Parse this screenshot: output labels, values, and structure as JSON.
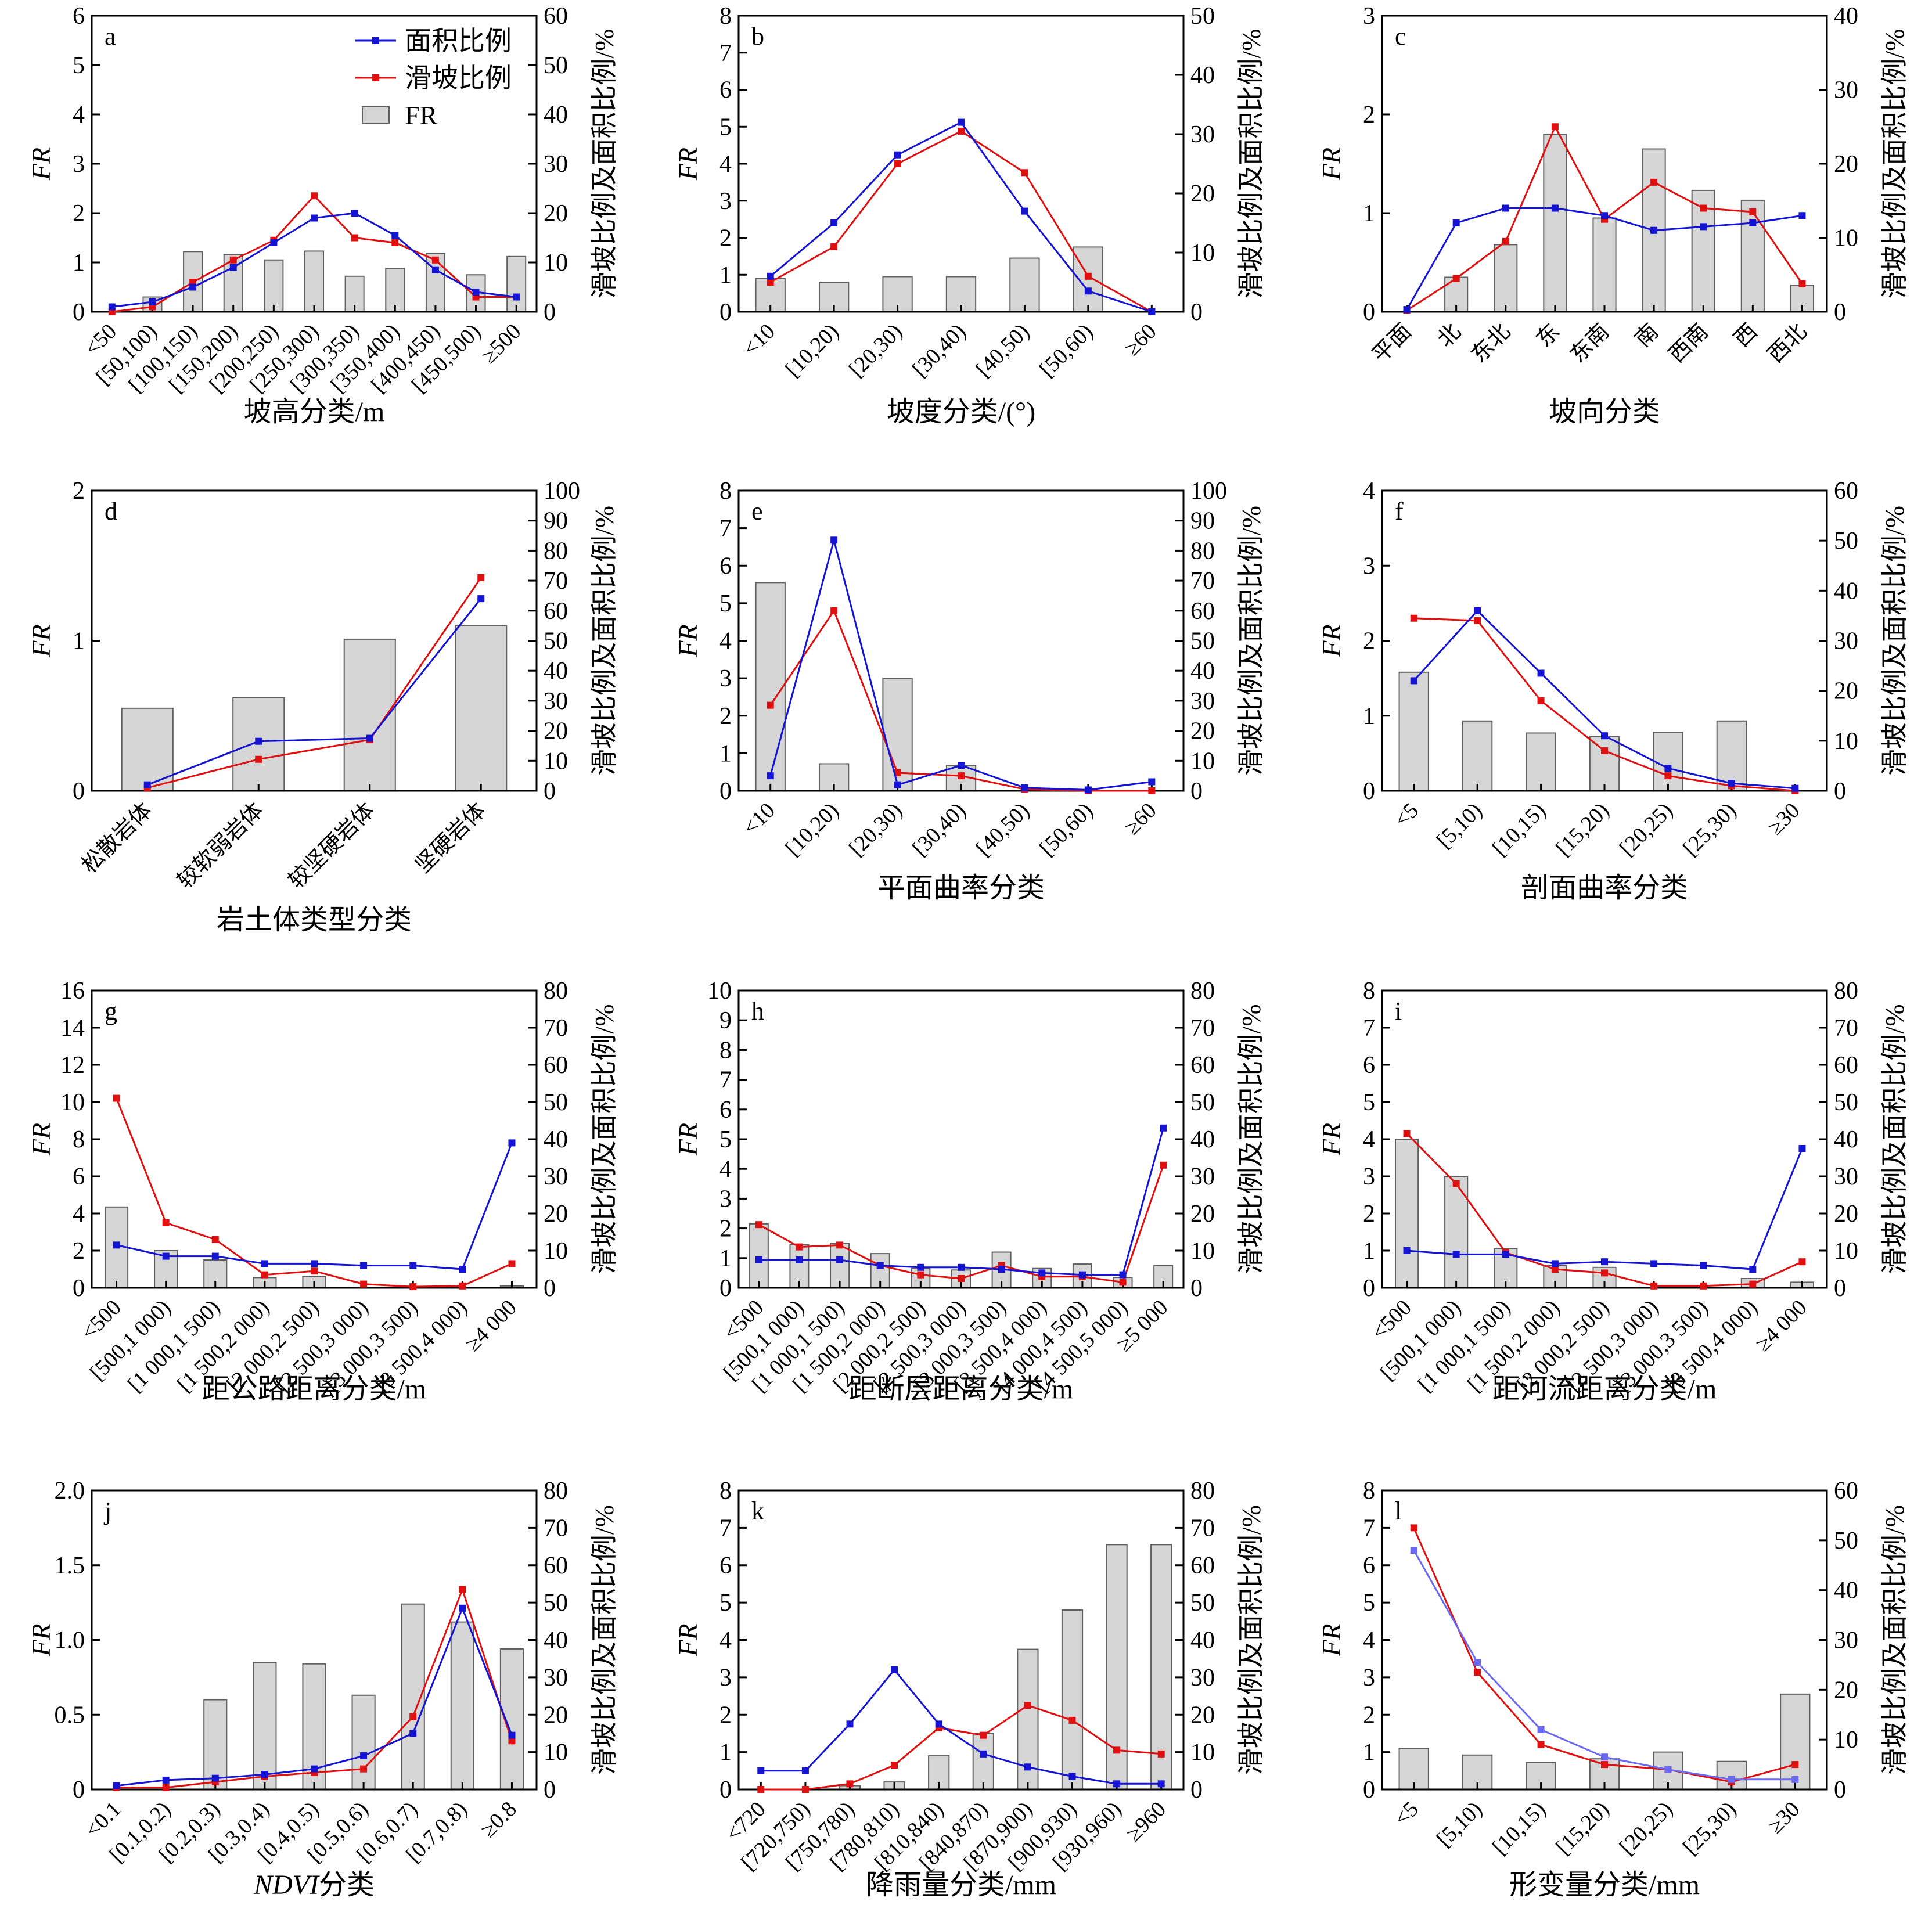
{
  "figure": {
    "colors": {
      "area": "#1414d2",
      "landslide": "#e01010",
      "bar_fill": "#d6d6d6",
      "bar_stroke": "#606060",
      "faint_area": "#6a6af0"
    },
    "legend": {
      "area": "面积比例",
      "landslide": "滑坡比例",
      "fr": "FR"
    }
  },
  "chart_data": [
    {
      "id": "a",
      "letter": "a",
      "type": "bar+line",
      "title": "",
      "xlabel": "坡高分类/m",
      "ylabel_left": "FR",
      "ylabel_right": "滑坡比例及面积比例/%",
      "left_ylim": [
        0,
        6
      ],
      "left_ticks": [
        "0",
        "1",
        "2",
        "3",
        "4",
        "5",
        "6"
      ],
      "right_ylim": [
        0,
        60
      ],
      "right_ticks": [
        "0",
        "10",
        "20",
        "30",
        "40",
        "50",
        "60"
      ],
      "categories": [
        "<50",
        "[50,100)",
        "[100,150)",
        "[150,200)",
        "[200,250)",
        "[250,300)",
        "[300,350)",
        "[350,400)",
        "[400,450)",
        "[450,500)",
        "≥500"
      ],
      "fr": [
        0,
        0.3,
        1.22,
        1.16,
        1.05,
        1.23,
        0.72,
        0.88,
        1.18,
        0.75,
        1.12
      ],
      "series": [
        {
          "name": "面积比例",
          "values": [
            1,
            2,
            5,
            9,
            14,
            19,
            20,
            15.5,
            8.5,
            4,
            3
          ]
        },
        {
          "name": "滑坡比例",
          "values": [
            0,
            1,
            6,
            10.5,
            14.5,
            23.5,
            15,
            14,
            10.5,
            3,
            3
          ]
        }
      ],
      "has_legend": true
    },
    {
      "id": "b",
      "letter": "b",
      "type": "bar+line",
      "title": "",
      "xlabel": "坡度分类/(°)",
      "ylabel_left": "FR",
      "ylabel_right": "滑坡比例及面积比例/%",
      "left_ylim": [
        0,
        8
      ],
      "left_ticks": [
        "0",
        "1",
        "2",
        "3",
        "4",
        "5",
        "6",
        "7",
        "8"
      ],
      "right_ylim": [
        0,
        50
      ],
      "right_ticks": [
        "0",
        "10",
        "20",
        "30",
        "40",
        "50"
      ],
      "categories": [
        "<10",
        "[10,20)",
        "[20,30)",
        "[30,40)",
        "[40,50)",
        "[50,60)",
        "≥60"
      ],
      "fr": [
        0.9,
        0.8,
        0.95,
        0.95,
        1.45,
        1.75,
        0
      ],
      "series": [
        {
          "name": "面积比例",
          "values": [
            6,
            15,
            26.5,
            32,
            17,
            3.5,
            0
          ]
        },
        {
          "name": "滑坡比例",
          "values": [
            5,
            11,
            25,
            30.5,
            23.5,
            6,
            0
          ]
        }
      ]
    },
    {
      "id": "c",
      "letter": "c",
      "type": "bar+line",
      "title": "",
      "xlabel": "坡向分类",
      "ylabel_left": "FR",
      "ylabel_right": "滑坡比例及面积比例/%",
      "left_ylim": [
        0,
        3
      ],
      "left_ticks": [
        "0",
        "1",
        "2",
        "3"
      ],
      "right_ylim": [
        0,
        40
      ],
      "right_ticks": [
        "0",
        "10",
        "20",
        "30",
        "40"
      ],
      "categories": [
        "平面",
        "北",
        "东北",
        "东",
        "东南",
        "南",
        "西南",
        "西",
        "西北"
      ],
      "fr": [
        0,
        0.35,
        0.68,
        1.8,
        0.95,
        1.65,
        1.23,
        1.13,
        0.27
      ],
      "series": [
        {
          "name": "面积比例",
          "values": [
            0.3,
            12,
            14,
            14,
            13,
            11,
            11.5,
            12,
            13
          ]
        },
        {
          "name": "滑坡比例",
          "values": [
            0.2,
            4.5,
            9.5,
            25,
            12.5,
            17.5,
            14,
            13.5,
            3.8
          ]
        }
      ]
    },
    {
      "id": "d",
      "letter": "d",
      "type": "bar+line",
      "title": "",
      "xlabel": "岩土体类型分类",
      "ylabel_left": "FR",
      "ylabel_right": "滑坡比例及面积比例/%",
      "left_ylim": [
        0,
        2
      ],
      "left_ticks": [
        "0",
        "1",
        "2"
      ],
      "right_ylim": [
        0,
        100
      ],
      "right_ticks": [
        "0",
        "10",
        "20",
        "30",
        "40",
        "50",
        "60",
        "70",
        "80",
        "90",
        "100"
      ],
      "categories": [
        "松散岩体",
        "较软弱岩体",
        "较坚硬岩体",
        "坚硬岩体"
      ],
      "fr": [
        0.55,
        0.62,
        1.01,
        1.1
      ],
      "series": [
        {
          "name": "面积比例",
          "values": [
            2,
            16.5,
            17.5,
            64
          ]
        },
        {
          "name": "滑坡比例",
          "values": [
            1,
            10.5,
            17,
            71
          ]
        }
      ]
    },
    {
      "id": "e",
      "letter": "e",
      "type": "bar+line",
      "title": "",
      "xlabel": "平面曲率分类",
      "ylabel_left": "FR",
      "ylabel_right": "滑坡比例及面积比例/%",
      "left_ylim": [
        0,
        8
      ],
      "left_ticks": [
        "0",
        "1",
        "2",
        "3",
        "4",
        "5",
        "6",
        "7",
        "8"
      ],
      "right_ylim": [
        0,
        100
      ],
      "right_ticks": [
        "0",
        "10",
        "20",
        "30",
        "40",
        "50",
        "60",
        "70",
        "80",
        "90",
        "100"
      ],
      "categories": [
        "<10",
        "[10,20)",
        "[20,30)",
        "[30,40)",
        "[40,50)",
        "[50,60)",
        "≥60"
      ],
      "fr": [
        5.55,
        0.72,
        3.0,
        0.68,
        0,
        0,
        0
      ],
      "series": [
        {
          "name": "面积比例",
          "values": [
            5,
            83.5,
            2,
            8.5,
            1,
            0.3,
            3
          ]
        },
        {
          "name": "滑坡比例",
          "values": [
            28.5,
            60,
            6,
            5,
            0.5,
            0,
            0
          ]
        }
      ]
    },
    {
      "id": "f",
      "letter": "f",
      "type": "bar+line",
      "title": "",
      "xlabel": "剖面曲率分类",
      "ylabel_left": "FR",
      "ylabel_right": "滑坡比例及面积比例/%",
      "left_ylim": [
        0,
        4
      ],
      "left_ticks": [
        "0",
        "1",
        "2",
        "3",
        "4"
      ],
      "right_ylim": [
        0,
        60
      ],
      "right_ticks": [
        "0",
        "10",
        "20",
        "30",
        "40",
        "50",
        "60"
      ],
      "categories": [
        "<5",
        "[5,10)",
        "[10,15)",
        "[15,20)",
        "[20,25)",
        "[25,30)",
        "≥30"
      ],
      "fr": [
        1.58,
        0.93,
        0.77,
        0.72,
        0.78,
        0.93,
        0
      ],
      "series": [
        {
          "name": "面积比例",
          "values": [
            22,
            36,
            23.5,
            11,
            4.5,
            1.5,
            0.5
          ]
        },
        {
          "name": "滑坡比例",
          "values": [
            34.5,
            34,
            18,
            8,
            3,
            1,
            0
          ]
        }
      ]
    },
    {
      "id": "g",
      "letter": "g",
      "type": "bar+line",
      "title": "",
      "xlabel": "距公路距离分类/m",
      "ylabel_left": "FR",
      "ylabel_right": "滑坡比例及面积比例/%",
      "left_ylim": [
        0,
        16
      ],
      "left_ticks": [
        "0",
        "2",
        "4",
        "6",
        "8",
        "10",
        "12",
        "14",
        "16"
      ],
      "right_ylim": [
        0,
        80
      ],
      "right_ticks": [
        "0",
        "10",
        "20",
        "30",
        "40",
        "50",
        "60",
        "70",
        "80"
      ],
      "categories": [
        "<500",
        "[500,1 000)",
        "[1 000,1 500)",
        "[1 500,2 000)",
        "[2 000,2 500)",
        "[2 500,3 000)",
        "[3 000,3 500)",
        "[3 500,4 000)",
        "≥4 000"
      ],
      "fr": [
        4.35,
        2.0,
        1.5,
        0.55,
        0.6,
        0,
        0,
        0,
        0.1
      ],
      "series": [
        {
          "name": "面积比例",
          "values": [
            11.5,
            8.5,
            8.5,
            6.5,
            6.5,
            6,
            6,
            5,
            39
          ]
        },
        {
          "name": "滑坡比例",
          "values": [
            51,
            17.5,
            13,
            3.5,
            4.5,
            1,
            0.3,
            0.5,
            6.5
          ]
        }
      ]
    },
    {
      "id": "h",
      "letter": "h",
      "type": "bar+line",
      "title": "",
      "xlabel": "距断层距离分类/m",
      "ylabel_left": "FR",
      "ylabel_right": "滑坡比例及面积比例/%",
      "left_ylim": [
        0,
        10
      ],
      "left_ticks": [
        "0",
        "1",
        "2",
        "3",
        "4",
        "5",
        "6",
        "7",
        "8",
        "9",
        "10"
      ],
      "right_ylim": [
        0,
        80
      ],
      "right_ticks": [
        "0",
        "10",
        "20",
        "30",
        "40",
        "50",
        "60",
        "70",
        "80"
      ],
      "categories": [
        "<500",
        "[500,1 000)",
        "[1 000,1 500)",
        "[1 500,2 000)",
        "[2 000,2 500)",
        "[2 500,3 000)",
        "[3 000,3 500)",
        "[3 500,4 000)",
        "[4 000,4 500)",
        "[4 500,5 000)",
        "≥5 000"
      ],
      "fr": [
        2.15,
        1.45,
        1.5,
        1.15,
        0.65,
        0.6,
        1.2,
        0.65,
        0.8,
        0.35,
        0.75
      ],
      "series": [
        {
          "name": "面积比例",
          "values": [
            7.5,
            7.5,
            7.5,
            6,
            5.5,
            5.5,
            5,
            4,
            3.5,
            3.5,
            43
          ]
        },
        {
          "name": "滑坡比例",
          "values": [
            17,
            11,
            11.5,
            6,
            3.5,
            2.5,
            6,
            3,
            3,
            1.5,
            33
          ]
        }
      ]
    },
    {
      "id": "i",
      "letter": "i",
      "type": "bar+line",
      "title": "",
      "xlabel": "距河流距离分类/m",
      "ylabel_left": "FR",
      "ylabel_right": "滑坡比例及面积比例/%",
      "left_ylim": [
        0,
        8
      ],
      "left_ticks": [
        "0",
        "1",
        "2",
        "3",
        "4",
        "5",
        "6",
        "7",
        "8"
      ],
      "right_ylim": [
        0,
        80
      ],
      "right_ticks": [
        "0",
        "10",
        "20",
        "30",
        "40",
        "50",
        "60",
        "70",
        "80"
      ],
      "categories": [
        "<500",
        "[500,1 000)",
        "[1 000,1 500)",
        "[1 500,2 000)",
        "[2 000,2 500)",
        "[2 500,3 000)",
        "[3 000,3 500)",
        "[3 500,4 000)",
        "≥4 000"
      ],
      "fr": [
        4.0,
        3.0,
        1.05,
        0.6,
        0.55,
        0,
        0,
        0.25,
        0.15
      ],
      "series": [
        {
          "name": "面积比例",
          "values": [
            10,
            9,
            9,
            6.5,
            7,
            6.5,
            6,
            5,
            37.5
          ]
        },
        {
          "name": "滑坡比例",
          "values": [
            41.5,
            28,
            9.5,
            5,
            4,
            0.5,
            0.5,
            1,
            7
          ]
        }
      ]
    },
    {
      "id": "j",
      "letter": "j",
      "type": "bar+line",
      "title": "",
      "xlabel": "NDVI分类",
      "ylabel_left": "FR",
      "ylabel_right": "滑坡比例及面积比例/%",
      "left_ylim": [
        0,
        2
      ],
      "left_ticks": [
        "0",
        "0.5",
        "1.0",
        "1.5",
        "2.0"
      ],
      "right_ylim": [
        0,
        80
      ],
      "right_ticks": [
        "0",
        "10",
        "20",
        "30",
        "40",
        "50",
        "60",
        "70",
        "80"
      ],
      "categories": [
        "<0.1",
        "[0.1,0.2)",
        "[0.2,0.3)",
        "[0.3,0.4)",
        "[0.4,0.5)",
        "[0.5,0.6)",
        "[0.6,0.7)",
        "[0.7,0.8)",
        "≥0.8"
      ],
      "fr": [
        0,
        0,
        0.6,
        0.85,
        0.84,
        0.63,
        1.24,
        1.12,
        0.94
      ],
      "series": [
        {
          "name": "面积比例",
          "values": [
            1,
            2.5,
            3,
            4,
            5.5,
            9,
            15,
            48.5,
            14.5
          ]
        },
        {
          "name": "滑坡比例",
          "values": [
            0.5,
            0.5,
            2,
            3.5,
            4.5,
            5.5,
            19.5,
            53.5,
            13
          ]
        }
      ]
    },
    {
      "id": "k",
      "letter": "k",
      "type": "bar+line",
      "title": "",
      "xlabel": "降雨量分类/mm",
      "ylabel_left": "FR",
      "ylabel_right": "滑坡比例及面积比例/%",
      "left_ylim": [
        0,
        8
      ],
      "left_ticks": [
        "0",
        "1",
        "2",
        "3",
        "4",
        "5",
        "6",
        "7",
        "8"
      ],
      "right_ylim": [
        0,
        80
      ],
      "right_ticks": [
        "0",
        "10",
        "20",
        "30",
        "40",
        "50",
        "60",
        "70",
        "80"
      ],
      "categories": [
        "<720",
        "[720,750)",
        "[750,780)",
        "[780,810)",
        "[810,840)",
        "[840,870)",
        "[870,900)",
        "[900,930)",
        "[930,960)",
        "≥960"
      ],
      "fr": [
        0,
        0,
        0.1,
        0.2,
        0.9,
        1.5,
        3.75,
        4.8,
        6.55,
        6.55
      ],
      "series": [
        {
          "name": "面积比例",
          "values": [
            5,
            5,
            17.5,
            32,
            17.5,
            9.5,
            6,
            3.5,
            1.5,
            1.5
          ]
        },
        {
          "name": "滑坡比例",
          "values": [
            0,
            0,
            1.5,
            6.5,
            16.5,
            14.5,
            22.5,
            18.5,
            10.5,
            9.5
          ]
        }
      ]
    },
    {
      "id": "l",
      "letter": "l",
      "type": "bar+line",
      "title": "",
      "xlabel": "形变量分类/mm",
      "ylabel_left": "FR",
      "ylabel_right": "滑坡比例及面积比例/%",
      "left_ylim": [
        0,
        8
      ],
      "left_ticks": [
        "0",
        "1",
        "2",
        "3",
        "4",
        "5",
        "6",
        "7",
        "8"
      ],
      "right_ylim": [
        0,
        60
      ],
      "right_ticks": [
        "0",
        "10",
        "20",
        "30",
        "40",
        "50",
        "60"
      ],
      "categories": [
        "<5",
        "[5,10)",
        "[10,15)",
        "[15,20)",
        "[20,25)",
        "[25,30)",
        "≥30"
      ],
      "fr": [
        1.1,
        0.92,
        0.72,
        0.82,
        1.0,
        0.75,
        2.55
      ],
      "series": [
        {
          "name": "面积比例",
          "values": [
            48,
            25.5,
            12,
            6.5,
            4,
            2,
            2
          ]
        },
        {
          "name": "滑坡比例",
          "values": [
            52.5,
            23.5,
            9,
            5,
            4,
            1.5,
            5
          ]
        }
      ]
    }
  ]
}
